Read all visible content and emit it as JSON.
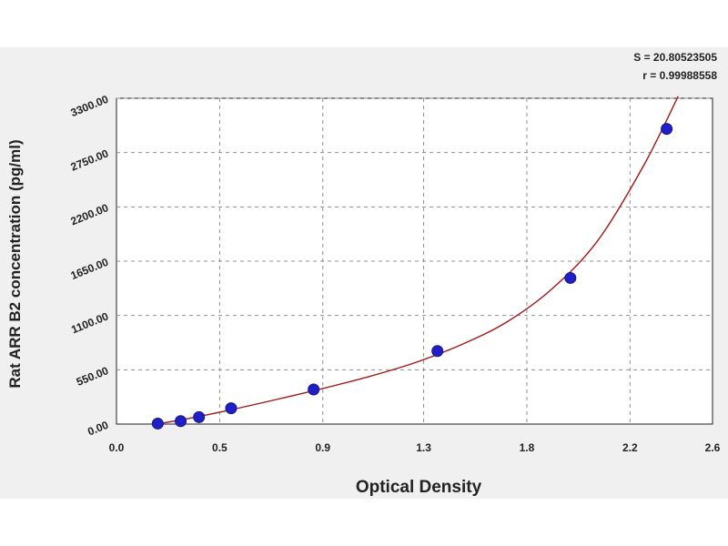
{
  "chart_data": {
    "type": "scatter",
    "title": "",
    "xlabel": "Optical Density",
    "ylabel": "Rat ARR B2 concentration (pg/ml)",
    "xlim": [
      0.0,
      2.6
    ],
    "ylim": [
      0,
      3300
    ],
    "x_ticks": [
      "0.0",
      "0.5",
      "0.9",
      "1.3",
      "1.8",
      "2.2",
      "2.6"
    ],
    "x_tick_values": [
      0.0,
      0.45,
      0.9,
      1.34,
      1.79,
      2.24,
      2.68
    ],
    "y_ticks": [
      "0.00",
      "550.00",
      "1100.00",
      "1650.00",
      "2200.00",
      "2750.00",
      "3300.00"
    ],
    "y_tick_values": [
      0,
      550,
      1100,
      1650,
      2200,
      2750,
      3300
    ],
    "grid": true,
    "series": [
      {
        "x": [
          0.18,
          0.28,
          0.36,
          0.5,
          0.86,
          1.4,
          1.98,
          2.4
        ],
        "y": [
          5,
          30,
          70,
          160,
          350,
          740,
          1480,
          2990
        ]
      }
    ],
    "fit_curve": {
      "x": [
        0.15,
        0.3,
        0.5,
        0.7,
        0.9,
        1.1,
        1.3,
        1.5,
        1.7,
        1.9,
        2.1,
        2.3,
        2.45
      ],
      "y": [
        -10,
        50,
        145,
        250,
        360,
        480,
        620,
        800,
        1030,
        1370,
        1860,
        2620,
        3320
      ]
    },
    "stats": {
      "s_label": "S = 20.80523505",
      "r_label": "r = 0.99988558"
    },
    "colors": {
      "point": "#1f1fc8",
      "curve": "#a01818",
      "grid": "#909090",
      "plot_bg": "#ffffff",
      "outer_bg": "#f0f0f0"
    }
  }
}
